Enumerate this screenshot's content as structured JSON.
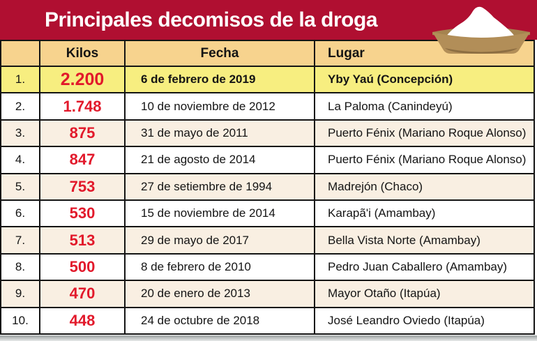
{
  "chart_data": {
    "type": "table",
    "title": "Principales decomisos de la droga",
    "columns": [
      "",
      "Kilos",
      "Fecha",
      "Lugar"
    ],
    "rows": [
      {
        "rank": "1.",
        "kilos": "2.200",
        "fecha": "6 de febrero de 2019",
        "lugar": "Yby Yaú (Concepción)",
        "highlight": true
      },
      {
        "rank": "2.",
        "kilos": "1.748",
        "fecha": "10 de noviembre de 2012",
        "lugar": "La Paloma (Canindeyú)",
        "highlight": false
      },
      {
        "rank": "3.",
        "kilos": "875",
        "fecha": "31 de mayo de 2011",
        "lugar": "Puerto Fénix (Mariano Roque Alonso)",
        "highlight": false
      },
      {
        "rank": "4.",
        "kilos": "847",
        "fecha": "21 de agosto de 2014",
        "lugar": "Puerto Fénix (Mariano Roque Alonso)",
        "highlight": false
      },
      {
        "rank": "5.",
        "kilos": "753",
        "fecha": "27 de setiembre de 1994",
        "lugar": "Madrejón (Chaco)",
        "highlight": false
      },
      {
        "rank": "6.",
        "kilos": "530",
        "fecha": "15 de noviembre de 2014",
        "lugar": "Karapã'i (Amambay)",
        "highlight": false
      },
      {
        "rank": "7.",
        "kilos": "513",
        "fecha": "29 de mayo de 2017",
        "lugar": "Bella Vista Norte (Amambay)",
        "highlight": false
      },
      {
        "rank": "8.",
        "kilos": "500",
        "fecha": "8 de febrero de 2010",
        "lugar": "Pedro Juan Caballero (Amambay)",
        "highlight": false
      },
      {
        "rank": "9.",
        "kilos": "470",
        "fecha": "20 de enero de 2013",
        "lugar": "Mayor Otaño (Itapúa)",
        "highlight": false
      },
      {
        "rank": "10.",
        "kilos": "448",
        "fecha": "24 de octubre de 2018",
        "lugar": "José Leandro Oviedo (Itapúa)",
        "highlight": false
      }
    ]
  },
  "icons": {
    "header_icon": "cocaine-sack-icon"
  },
  "colors": {
    "band_red": "#b00f31",
    "value_red": "#e2192b",
    "header_tan": "#f7d38e",
    "highlight_yellow": "#f7ee80",
    "stripe_beige": "#f9efe2",
    "grid_black": "#141414"
  }
}
